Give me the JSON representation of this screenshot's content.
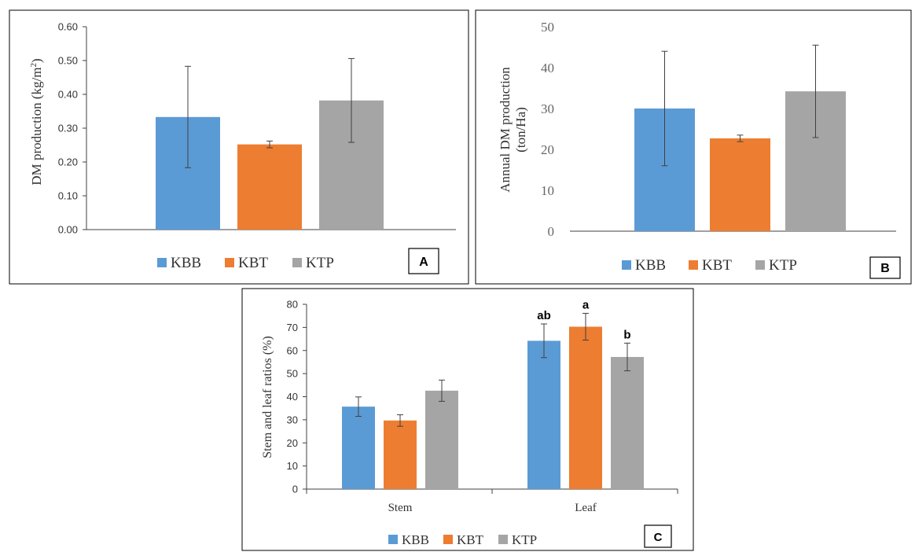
{
  "colors": {
    "KBB": "#5b9bd5",
    "KBT": "#ed7d31",
    "KTP": "#a5a5a5",
    "axis": "#404040",
    "error": "#404040"
  },
  "chart_data": [
    {
      "panel": "A",
      "type": "bar",
      "ylabel": "DM production (kg/m²)",
      "ylabel_main": "DM production (kg/m",
      "ylabel_sup": "2",
      "ylabel_end": ")",
      "ylim": [
        0,
        0.6
      ],
      "yticks": [
        "0.00",
        "0.10",
        "0.20",
        "0.30",
        "0.40",
        "0.50",
        "0.60"
      ],
      "categories": [
        ""
      ],
      "series": [
        {
          "name": "KBB",
          "values": [
            0.333
          ],
          "errors": [
            0.15
          ]
        },
        {
          "name": "KBT",
          "values": [
            0.252
          ],
          "errors": [
            0.01
          ]
        },
        {
          "name": "KTP",
          "values": [
            0.382
          ],
          "errors": [
            0.124
          ]
        }
      ],
      "legend": [
        "KBB",
        "KBT",
        "KTP"
      ],
      "legend_position": "bottom",
      "grid": false
    },
    {
      "panel": "B",
      "type": "bar",
      "ylabel_line1": "Annual DM production",
      "ylabel_line2": "(ton/Ha)",
      "ylim": [
        0,
        50
      ],
      "yticks": [
        "0",
        "10",
        "20",
        "30",
        "40",
        "50"
      ],
      "categories": [
        ""
      ],
      "series": [
        {
          "name": "KBB",
          "values": [
            30
          ],
          "errors": [
            14
          ]
        },
        {
          "name": "KBT",
          "values": [
            22.7
          ],
          "errors": [
            0.8
          ]
        },
        {
          "name": "KTP",
          "values": [
            34.2
          ],
          "errors": [
            11.3
          ]
        }
      ],
      "legend": [
        "KBB",
        "KBT",
        "KTP"
      ],
      "legend_position": "bottom",
      "grid": false
    },
    {
      "panel": "C",
      "type": "bar",
      "ylabel": "Stem and leaf ratios (%)",
      "ylim": [
        0,
        80
      ],
      "yticks": [
        "0",
        "10",
        "20",
        "30",
        "40",
        "50",
        "60",
        "70",
        "80"
      ],
      "categories": [
        "Stem",
        "Leaf"
      ],
      "series": [
        {
          "name": "KBB",
          "values": [
            35.7,
            64.2
          ],
          "errors": [
            4.2,
            7.3
          ],
          "labels": [
            "",
            "ab"
          ]
        },
        {
          "name": "KBT",
          "values": [
            29.7,
            70.3
          ],
          "errors": [
            2.5,
            5.8
          ],
          "labels": [
            "",
            "a"
          ]
        },
        {
          "name": "KTP",
          "values": [
            42.6,
            57.2
          ],
          "errors": [
            4.6,
            6.0
          ],
          "labels": [
            "",
            "b"
          ]
        }
      ],
      "legend": [
        "KBB",
        "KBT",
        "KTP"
      ],
      "legend_position": "bottom",
      "grid": false
    }
  ]
}
